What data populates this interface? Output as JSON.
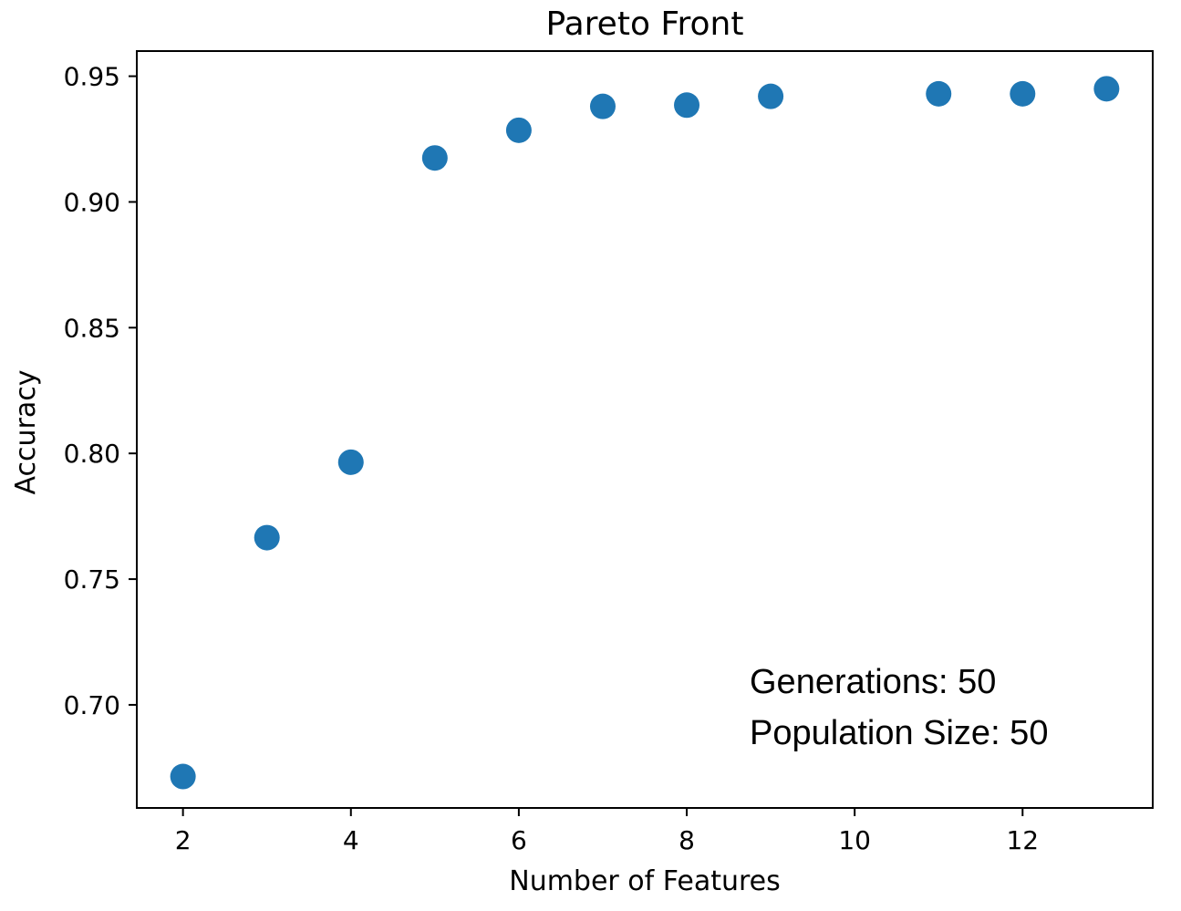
{
  "chart_data": {
    "type": "scatter",
    "title": "Pareto Front",
    "xlabel": "Number of Features",
    "ylabel": "Accuracy",
    "xlim": [
      1.45,
      13.55
    ],
    "ylim": [
      0.659,
      0.96
    ],
    "xticks": [
      2,
      4,
      6,
      8,
      10,
      12
    ],
    "xtick_labels": [
      "2",
      "4",
      "6",
      "8",
      "10",
      "12"
    ],
    "yticks": [
      0.7,
      0.75,
      0.8,
      0.85,
      0.9,
      0.95
    ],
    "ytick_labels": [
      "0.70",
      "0.75",
      "0.80",
      "0.85",
      "0.90",
      "0.95"
    ],
    "grid": false,
    "marker_color": "#1f77b4",
    "series": [
      {
        "x": [
          2,
          3,
          4,
          5,
          6,
          7,
          8,
          9,
          11,
          12,
          13
        ],
        "y": [
          0.6715,
          0.7665,
          0.7965,
          0.9175,
          0.9285,
          0.938,
          0.9385,
          0.942,
          0.943,
          0.943,
          0.945
        ]
      }
    ],
    "annotations": [
      "Generations: 50",
      "Population Size: 50"
    ]
  }
}
